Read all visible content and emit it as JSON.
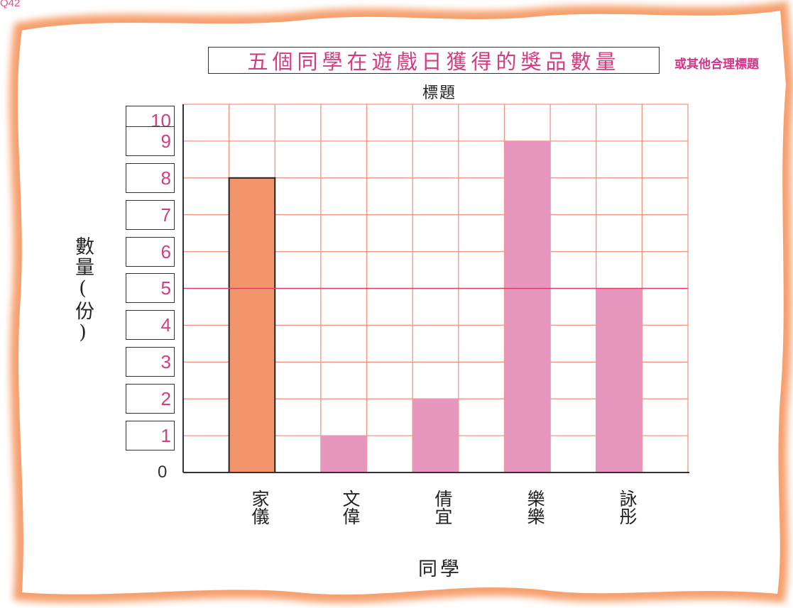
{
  "question_label": "Q42",
  "colors": {
    "paper_edge": "#f6a06e",
    "grid": "#f2957f",
    "accent_text": "#d43c82",
    "highlight_bar": "#f2956d",
    "bar": "#e796bd",
    "midline": "#df3f66"
  },
  "chart_data": {
    "type": "bar",
    "title": "五個同學在遊戲日獲得的獎品數量",
    "title_note": "或其他合理標題",
    "title_caption": "標題",
    "xlabel": "同學",
    "ylabel": "數量(份)",
    "categories": [
      "家儀",
      "文偉",
      "倩宜",
      "樂樂",
      "詠彤"
    ],
    "values": [
      8,
      1,
      2,
      9,
      5
    ],
    "highlighted_index": 0,
    "ylim": [
      0,
      10
    ],
    "yticks": [
      "10",
      "9",
      "8",
      "7",
      "6",
      "5",
      "4",
      "3",
      "2",
      "1",
      "0"
    ],
    "grid": true
  }
}
